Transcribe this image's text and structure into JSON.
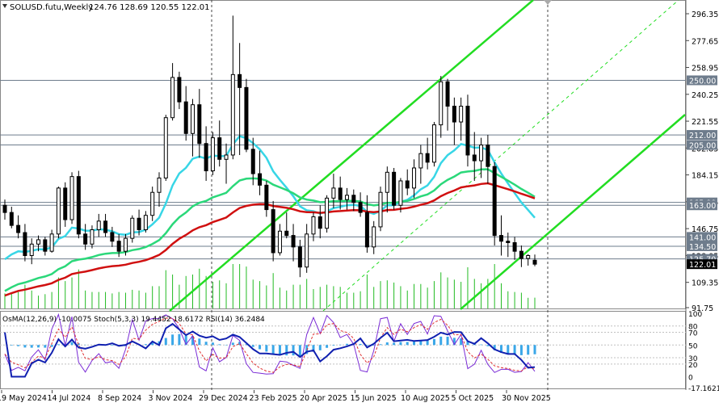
{
  "chart_data": {
    "type": "candlestick",
    "title": "SOLUSD.futu,Weekly",
    "ohlc": "124.76 128.69 120.55 122.01",
    "timeframe": "Weekly",
    "ylim": [
      91.75,
      302
    ],
    "y_ticks": [
      "296.35",
      "277.65",
      "258.95",
      "240.25",
      "221.55",
      "202.85",
      "184.15",
      "165.45",
      "146.75",
      "128.05",
      "109.35",
      "91.75"
    ],
    "levels": [
      {
        "value": 250.0,
        "label": "250.00"
      },
      {
        "value": 212.0,
        "label": "212.00"
      },
      {
        "value": 205.0,
        "label": "205.00"
      },
      {
        "value": 165.0,
        "label": "165.00"
      },
      {
        "value": 163.0,
        "label": "163.00"
      },
      {
        "value": 141.0,
        "label": "141.00"
      },
      {
        "value": 134.5,
        "label": "134.50"
      },
      {
        "value": 125.7,
        "label": "125.70"
      }
    ],
    "current_price": {
      "value": 122.01,
      "label": "122.01"
    },
    "x_labels": [
      "19 May 2024",
      "14 Jul 2024",
      "8 Sep 2024",
      "3 Nov 2024",
      "29 Dec 2024",
      "23 Feb 2025",
      "20 Apr 2025",
      "15 Jun 2025",
      "10 Aug 2025",
      "5 Oct 2025",
      "30 Nov 2025"
    ],
    "candles": [
      [
        163,
        167,
        153,
        158
      ],
      [
        158,
        162,
        147,
        149
      ],
      [
        149,
        156,
        140,
        144
      ],
      [
        144,
        150,
        124,
        128
      ],
      [
        128,
        140,
        122,
        136
      ],
      [
        136,
        142,
        131,
        139
      ],
      [
        139,
        141,
        128,
        131
      ],
      [
        131,
        146,
        130,
        143
      ],
      [
        143,
        176,
        140,
        175
      ],
      [
        175,
        179,
        148,
        153
      ],
      [
        153,
        186,
        150,
        183
      ],
      [
        183,
        187,
        140,
        143
      ],
      [
        143,
        150,
        132,
        136
      ],
      [
        136,
        149,
        133,
        146
      ],
      [
        146,
        157,
        141,
        152
      ],
      [
        152,
        157,
        141,
        144
      ],
      [
        144,
        148,
        134,
        138
      ],
      [
        138,
        143,
        127,
        131
      ],
      [
        131,
        143,
        128,
        140
      ],
      [
        140,
        156,
        137,
        154
      ],
      [
        154,
        160,
        142,
        146
      ],
      [
        146,
        159,
        144,
        156
      ],
      [
        156,
        176,
        152,
        172
      ],
      [
        172,
        186,
        162,
        182
      ],
      [
        182,
        226,
        180,
        224
      ],
      [
        224,
        262,
        222,
        252
      ],
      [
        252,
        256,
        230,
        235
      ],
      [
        235,
        246,
        208,
        213
      ],
      [
        213,
        237,
        197,
        233
      ],
      [
        233,
        244,
        196,
        206
      ],
      [
        206,
        218,
        180,
        187
      ],
      [
        187,
        214,
        184,
        210
      ],
      [
        210,
        222,
        190,
        195
      ],
      [
        195,
        206,
        178,
        198
      ],
      [
        198,
        295,
        195,
        254
      ],
      [
        254,
        276,
        198,
        245
      ],
      [
        245,
        251,
        200,
        202
      ],
      [
        202,
        210,
        177,
        185
      ],
      [
        185,
        201,
        170,
        177
      ],
      [
        177,
        180,
        155,
        160
      ],
      [
        160,
        166,
        124,
        130
      ],
      [
        130,
        150,
        128,
        145
      ],
      [
        145,
        158,
        140,
        142
      ],
      [
        142,
        150,
        124,
        134
      ],
      [
        134,
        139,
        113,
        120
      ],
      [
        120,
        150,
        116,
        143
      ],
      [
        143,
        158,
        138,
        155
      ],
      [
        155,
        163,
        140,
        147
      ],
      [
        147,
        170,
        144,
        168
      ],
      [
        168,
        185,
        161,
        175
      ],
      [
        175,
        183,
        160,
        167
      ],
      [
        167,
        175,
        160,
        170
      ],
      [
        170,
        174,
        159,
        165
      ],
      [
        165,
        172,
        155,
        158
      ],
      [
        158,
        170,
        130,
        134
      ],
      [
        134,
        152,
        129,
        148
      ],
      [
        148,
        176,
        145,
        172
      ],
      [
        172,
        190,
        158,
        186
      ],
      [
        186,
        189,
        160,
        163
      ],
      [
        163,
        182,
        158,
        180
      ],
      [
        180,
        188,
        170,
        175
      ],
      [
        175,
        195,
        168,
        189
      ],
      [
        189,
        205,
        178,
        199
      ],
      [
        199,
        210,
        188,
        193
      ],
      [
        193,
        221,
        190,
        219
      ],
      [
        219,
        253,
        210,
        249
      ],
      [
        249,
        251,
        215,
        232
      ],
      [
        232,
        238,
        205,
        221
      ],
      [
        221,
        238,
        208,
        232
      ],
      [
        232,
        240,
        190,
        198
      ],
      [
        198,
        214,
        180,
        194
      ],
      [
        194,
        210,
        182,
        205
      ],
      [
        205,
        212,
        178,
        190
      ],
      [
        190,
        193,
        135,
        142
      ],
      [
        142,
        156,
        128,
        138
      ],
      [
        138,
        144,
        127,
        137
      ],
      [
        137,
        141,
        125,
        131
      ],
      [
        131,
        135,
        120,
        126
      ],
      [
        126,
        129,
        121,
        128
      ],
      [
        124.76,
        128.69,
        120.55,
        122.01
      ]
    ],
    "ma_slow_red": [
      102,
      103,
      104,
      105,
      106,
      107,
      108,
      109,
      110,
      111,
      112,
      113,
      114,
      115,
      116,
      117,
      118,
      119,
      120,
      121,
      122,
      123,
      124,
      125,
      126,
      127,
      128,
      129,
      130,
      131,
      132,
      133,
      134,
      135,
      136,
      137,
      138,
      139,
      140,
      141
    ],
    "indicator_label": "OsMA(12,26,9) -10.0075 Stoch(5,3,3) 19.4452 18.6172 RSI(14) 36.2484",
    "indicator_ticks": [
      "100",
      "80",
      "70",
      "50",
      "30",
      "20",
      "0",
      "-17.16216"
    ]
  }
}
